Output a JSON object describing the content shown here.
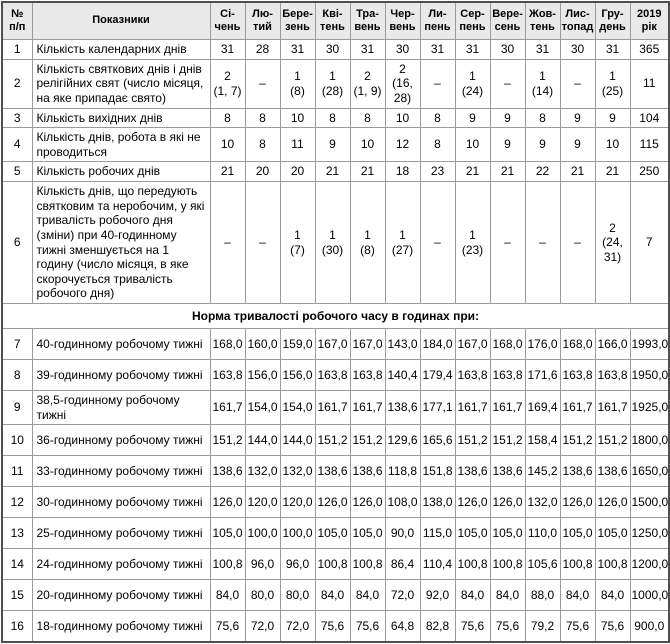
{
  "table": {
    "header": {
      "num": "№\nп/п",
      "indicator": "Показники",
      "months": [
        "Сі-\nчень",
        "Лю-\nтий",
        "Бере-\nзень",
        "Кві-\nтень",
        "Тра-\nвень",
        "Чер-\nвень",
        "Ли-\nпень",
        "Сер-\nпень",
        "Вере-\nсень",
        "Жов-\nтень",
        "Лис-\nтопад",
        "Гру-\nдень"
      ],
      "year": "2019\nрік"
    },
    "rows": [
      {
        "num": "1",
        "label": "Кількість календарних днів",
        "values": [
          "31",
          "28",
          "31",
          "30",
          "31",
          "30",
          "31",
          "31",
          "30",
          "31",
          "30",
          "31"
        ],
        "year": "365"
      },
      {
        "num": "2",
        "label": "Кількість святкових днів і днів релігійних свят (число місяця, на яке припадає свято)",
        "values": [
          "2\n(1, 7)",
          "–",
          "1\n(8)",
          "1\n(28)",
          "2\n(1, 9)",
          "2\n(16,\n28)",
          "–",
          "1\n(24)",
          "–",
          "1\n(14)",
          "–",
          "1\n(25)"
        ],
        "year": "11"
      },
      {
        "num": "3",
        "label": "Кількість вихідних днів",
        "values": [
          "8",
          "8",
          "10",
          "8",
          "8",
          "10",
          "8",
          "9",
          "9",
          "8",
          "9",
          "9"
        ],
        "year": "104"
      },
      {
        "num": "4",
        "label": "Кількість днів, робота в які не проводиться",
        "values": [
          "10",
          "8",
          "11",
          "9",
          "10",
          "12",
          "8",
          "10",
          "9",
          "9",
          "9",
          "10"
        ],
        "year": "115"
      },
      {
        "num": "5",
        "label": "Кількість робочих днів",
        "values": [
          "21",
          "20",
          "20",
          "21",
          "21",
          "18",
          "23",
          "21",
          "21",
          "22",
          "21",
          "21"
        ],
        "year": "250"
      },
      {
        "num": "6",
        "label": "Кількість днів, що передують святковим та неробочим, у які тривалість робочого дня (зміни) при 40-годинному тижні зменшується на 1 годину (число місяця, в яке скорочується тривалість робочого дня)",
        "values": [
          "–",
          "–",
          "1\n(7)",
          "1\n(30)",
          "1\n(8)",
          "1\n(27)",
          "–",
          "1\n(23)",
          "–",
          "–",
          "–",
          "2\n(24,\n31)"
        ],
        "year": "7"
      }
    ],
    "section_header": "Норма тривалості робочого часу в годинах при:",
    "hour_rows": [
      {
        "num": "7",
        "label": "40-годинному робочому тижні",
        "values": [
          "168,0",
          "160,0",
          "159,0",
          "167,0",
          "167,0",
          "143,0",
          "184,0",
          "167,0",
          "168,0",
          "176,0",
          "168,0",
          "166,0"
        ],
        "year": "1993,0"
      },
      {
        "num": "8",
        "label": "39-годинному робочому тижні",
        "values": [
          "163,8",
          "156,0",
          "156,0",
          "163,8",
          "163,8",
          "140,4",
          "179,4",
          "163,8",
          "163,8",
          "171,6",
          "163,8",
          "163,8"
        ],
        "year": "1950,0"
      },
      {
        "num": "9",
        "label": "38,5-годинному робочому тижні",
        "values": [
          "161,7",
          "154,0",
          "154,0",
          "161,7",
          "161,7",
          "138,6",
          "177,1",
          "161,7",
          "161,7",
          "169,4",
          "161,7",
          "161,7"
        ],
        "year": "1925,0"
      },
      {
        "num": "10",
        "label": "36-годинному робочому тижні",
        "values": [
          "151,2",
          "144,0",
          "144,0",
          "151,2",
          "151,2",
          "129,6",
          "165,6",
          "151,2",
          "151,2",
          "158,4",
          "151,2",
          "151,2"
        ],
        "year": "1800,0"
      },
      {
        "num": "11",
        "label": "33-годинному робочому тижні",
        "values": [
          "138,6",
          "132,0",
          "132,0",
          "138,6",
          "138,6",
          "118,8",
          "151,8",
          "138,6",
          "138,6",
          "145,2",
          "138,6",
          "138,6"
        ],
        "year": "1650,0"
      },
      {
        "num": "12",
        "label": "30-годинному робочому тижні",
        "values": [
          "126,0",
          "120,0",
          "120,0",
          "126,0",
          "126,0",
          "108,0",
          "138,0",
          "126,0",
          "126,0",
          "132,0",
          "126,0",
          "126,0"
        ],
        "year": "1500,0"
      },
      {
        "num": "13",
        "label": "25-годинному робочому тижні",
        "values": [
          "105,0",
          "100,0",
          "100,0",
          "105,0",
          "105,0",
          "90,0",
          "115,0",
          "105,0",
          "105,0",
          "110,0",
          "105,0",
          "105,0"
        ],
        "year": "1250,0"
      },
      {
        "num": "14",
        "label": "24-годинному робочому тижні",
        "values": [
          "100,8",
          "96,0",
          "96,0",
          "100,8",
          "100,8",
          "86,4",
          "110,4",
          "100,8",
          "100,8",
          "105,6",
          "100,8",
          "100,8"
        ],
        "year": "1200,0"
      },
      {
        "num": "15",
        "label": "20-годинному робочому тижні",
        "values": [
          "84,0",
          "80,0",
          "80,0",
          "84,0",
          "84,0",
          "72,0",
          "92,0",
          "84,0",
          "84,0",
          "88,0",
          "84,0",
          "84,0"
        ],
        "year": "1000,0"
      },
      {
        "num": "16",
        "label": "18-годинному робочому тижні",
        "values": [
          "75,6",
          "72,0",
          "72,0",
          "75,6",
          "75,6",
          "64,8",
          "82,8",
          "75,6",
          "75,6",
          "79,2",
          "75,6",
          "75,6"
        ],
        "year": "900,0"
      }
    ],
    "colors": {
      "header_bg": "#e9e9e9",
      "outer_border": "#4f4f51",
      "inner_border": "#9b9b9b",
      "text": "#000000"
    }
  }
}
